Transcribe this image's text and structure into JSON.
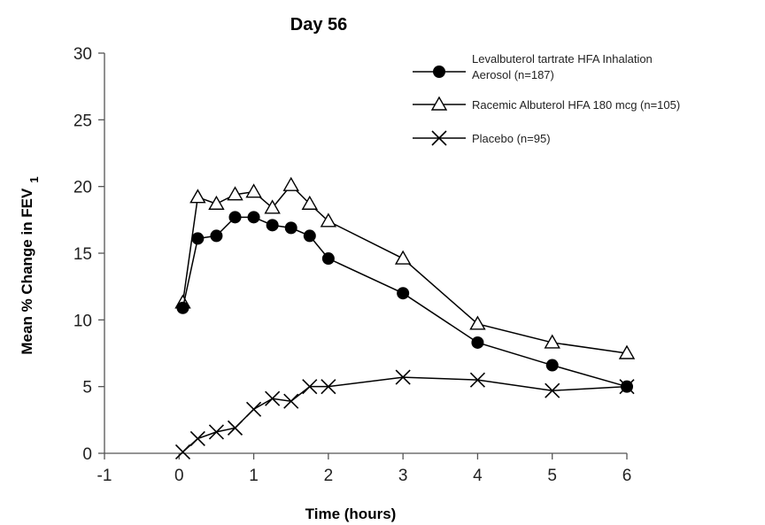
{
  "chart_data": {
    "type": "line",
    "title": "Day 56",
    "xlabel": "Time (hours)",
    "ylabel": "Mean % Change in FEV",
    "ylabel_subscript": "1",
    "xlim": [
      -1,
      6
    ],
    "ylim": [
      0,
      30
    ],
    "xticks": [
      -1,
      0,
      1,
      2,
      3,
      4,
      5,
      6
    ],
    "yticks": [
      0,
      5,
      10,
      15,
      20,
      25,
      30
    ],
    "grid": false,
    "legend_position": "top-right",
    "series": [
      {
        "name": "Levalbuterol tartrate HFA Inhalation Aerosol (n=187)",
        "legend_lines": [
          "Levalbuterol tartrate HFA Inhalation",
          "Aerosol (n=187)"
        ],
        "marker": "filled-circle",
        "color": "#000000",
        "x": [
          0.05,
          0.25,
          0.5,
          0.75,
          1.0,
          1.25,
          1.5,
          1.75,
          2.0,
          3.0,
          4.0,
          5.0,
          6.0
        ],
        "y": [
          10.9,
          16.1,
          16.3,
          17.7,
          17.7,
          17.1,
          16.9,
          16.3,
          14.6,
          12.0,
          8.3,
          6.6,
          5.0
        ]
      },
      {
        "name": "Racemic Albuterol HFA 180 mcg (n=105)",
        "legend_lines": [
          "Racemic Albuterol HFA 180 mcg (n=105)"
        ],
        "marker": "open-triangle",
        "color": "#000000",
        "x": [
          0.05,
          0.25,
          0.5,
          0.75,
          1.0,
          1.25,
          1.5,
          1.75,
          2.0,
          3.0,
          4.0,
          5.0,
          6.0
        ],
        "y": [
          11.3,
          19.2,
          18.7,
          19.4,
          19.6,
          18.4,
          20.1,
          18.7,
          17.4,
          14.6,
          9.7,
          8.3,
          7.5
        ]
      },
      {
        "name": "Placebo (n=95)",
        "legend_lines": [
          "Placebo (n=95)"
        ],
        "marker": "x",
        "color": "#000000",
        "x": [
          0.05,
          0.25,
          0.5,
          0.75,
          1.0,
          1.25,
          1.5,
          1.75,
          2.0,
          3.0,
          4.0,
          5.0,
          6.0
        ],
        "y": [
          0.1,
          1.1,
          1.6,
          1.9,
          3.3,
          4.1,
          3.9,
          5.0,
          5.0,
          5.7,
          5.5,
          4.7,
          5.0
        ]
      }
    ]
  }
}
